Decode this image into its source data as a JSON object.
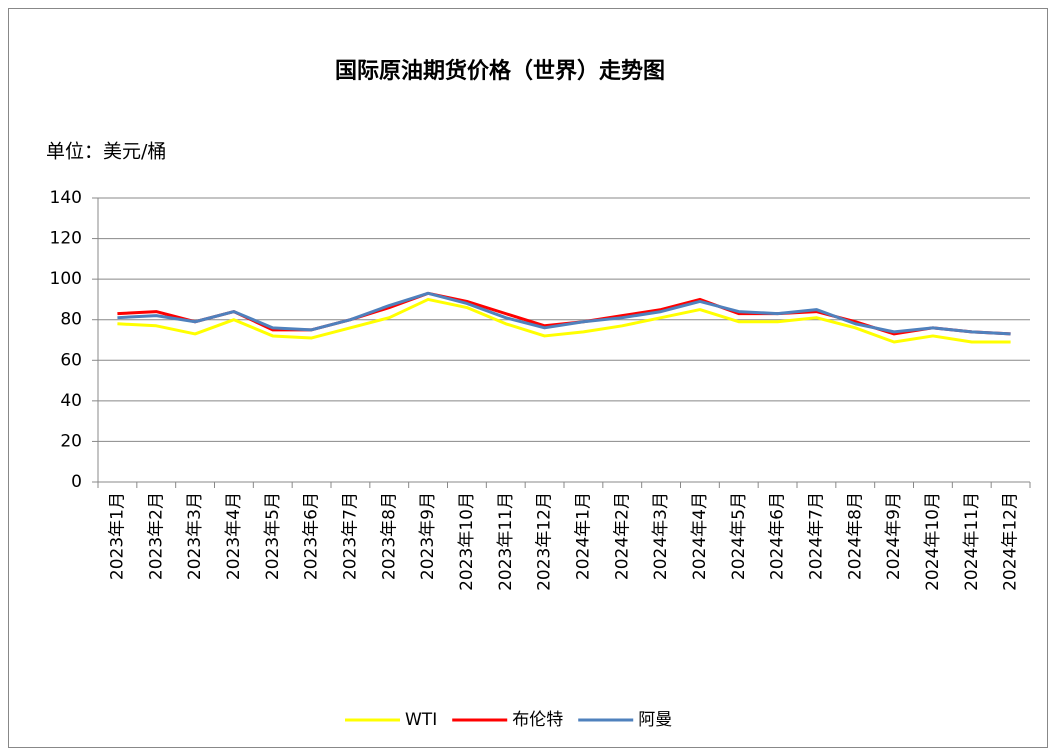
{
  "chart_data": {
    "type": "line",
    "title": "国际原油期货价格（世界）走势图",
    "y_axis_label": "单位：美元/桶",
    "categories": [
      "2023年1月",
      "2023年2月",
      "2023年3月",
      "2023年4月",
      "2023年5月",
      "2023年6月",
      "2023年7月",
      "2023年8月",
      "2023年9月",
      "2023年10月",
      "2023年11月",
      "2023年12月",
      "2024年1月",
      "2024年2月",
      "2024年3月",
      "2024年4月",
      "2024年5月",
      "2024年6月",
      "2024年7月",
      "2024年8月",
      "2024年9月",
      "2024年10月",
      "2024年11月",
      "2024年12月"
    ],
    "series": [
      {
        "name": "WTI",
        "color": "#ffff00",
        "values": [
          78,
          77,
          73,
          80,
          72,
          71,
          76,
          81,
          90,
          86,
          78,
          72,
          74,
          77,
          81,
          85,
          79,
          79,
          81,
          76,
          69,
          72,
          69,
          69
        ]
      },
      {
        "name": "布伦特",
        "color": "#ff0000",
        "values": [
          83,
          84,
          79,
          84,
          75,
          75,
          80,
          86,
          93,
          89,
          83,
          77,
          79,
          82,
          85,
          90,
          83,
          83,
          84,
          79,
          73,
          76,
          74,
          73
        ]
      },
      {
        "name": "阿曼",
        "color": "#4f81bd",
        "values": [
          81,
          82,
          79,
          84,
          76,
          75,
          80,
          87,
          93,
          88,
          81,
          76,
          79,
          81,
          84,
          89,
          84,
          83,
          85,
          78,
          74,
          76,
          74,
          73
        ]
      }
    ],
    "ylim": [
      0,
      140
    ],
    "yticks": [
      0,
      20,
      40,
      60,
      80,
      100,
      120,
      140
    ],
    "grid": true,
    "legend": "bottom"
  }
}
